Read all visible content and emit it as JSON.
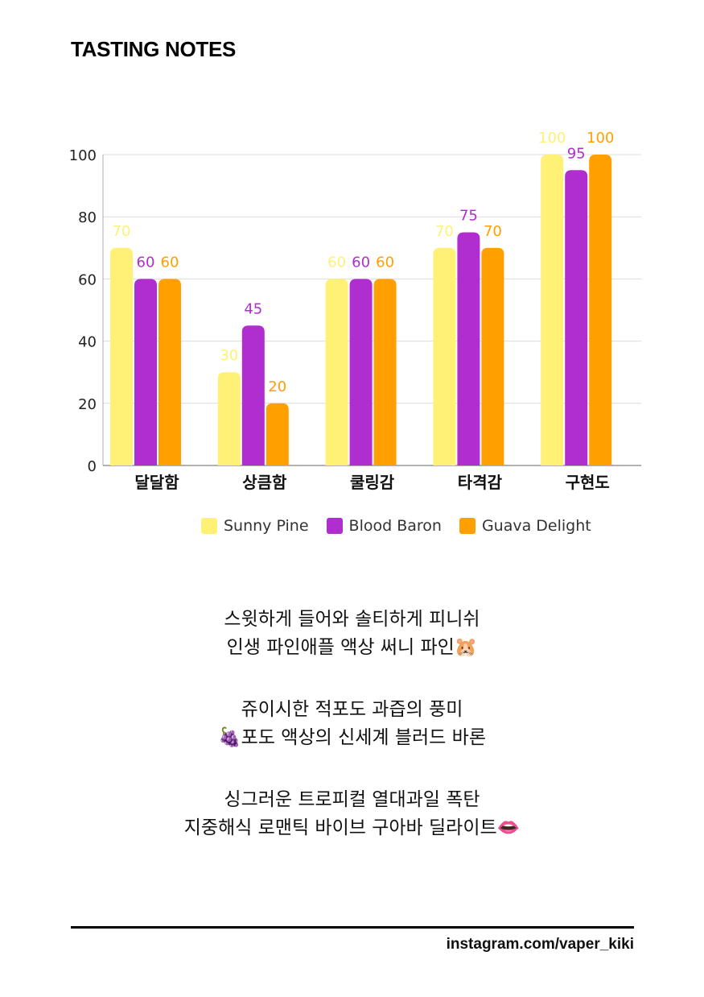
{
  "header": {
    "title": "TASTING NOTES"
  },
  "chart_data": {
    "type": "bar",
    "categories": [
      "달달함",
      "상큼함",
      "쿨링감",
      "타격감",
      "구현도"
    ],
    "series": [
      {
        "name": "Sunny Pine",
        "values": [
          70,
          30,
          60,
          70,
          100
        ],
        "color": "#FFF176"
      },
      {
        "name": "Blood Baron",
        "values": [
          60,
          45,
          60,
          75,
          95
        ],
        "color": "#B02ECF"
      },
      {
        "name": "Guava Delight",
        "values": [
          60,
          20,
          60,
          70,
          100
        ],
        "color": "#FF9F00"
      }
    ],
    "ylim": [
      0,
      100
    ],
    "yticks": [
      0,
      20,
      40,
      60,
      80,
      100
    ],
    "grid": true,
    "data_labels": true,
    "legend": "bottom"
  },
  "notes": [
    [
      "스윗하게 들어와 솔티하게 피니쉬",
      "인생 파인애플 액상 써니 파인🐹"
    ],
    [
      "쥬이시한 적포도 과즙의 풍미",
      "🍇포도 액상의 신세계 블러드 바론"
    ],
    [
      "싱그러운 트로피컬 열대과일 폭탄",
      "지중해식 로맨틱 바이브 구아바 딜라이트👄"
    ]
  ],
  "footer": {
    "handle": "instagram.com/vaper_kiki"
  }
}
